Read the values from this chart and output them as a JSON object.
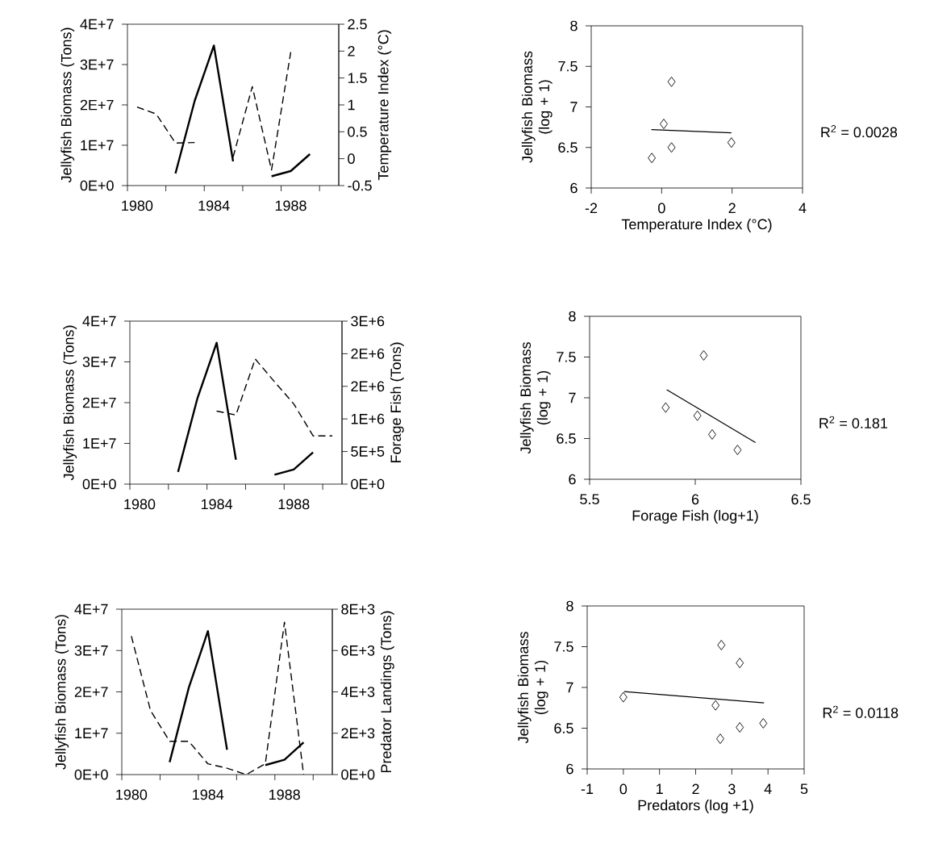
{
  "chart_data": [
    {
      "type": "line",
      "x": [
        1980,
        1981,
        1982,
        1983,
        1984,
        1985,
        1986,
        1987,
        1988,
        1989
      ],
      "xlim": [
        1979.5,
        1990.5
      ],
      "xticks": [
        {
          "value": 1979.5,
          "label": null
        },
        1980,
        {
          "value": 1981.5,
          "label": null
        },
        {
          "value": 1983.5,
          "label": null
        },
        1984,
        {
          "value": 1985.5,
          "label": null
        },
        {
          "value": 1987.5,
          "label": null
        },
        1988,
        {
          "value": 1989.5,
          "label": null
        }
      ],
      "ylabel": "Jellyfish Biomass (Tons)",
      "y2label": "Temperature Index (°C)",
      "ylim": [
        0,
        40000000
      ],
      "yticks": [
        {
          "value": 0,
          "label": "0E+0"
        },
        {
          "value": 10000000,
          "label": "1E+7"
        },
        {
          "value": 20000000,
          "label": "2E+7"
        },
        {
          "value": 30000000,
          "label": "3E+7"
        },
        {
          "value": 40000000,
          "label": "4E+7"
        }
      ],
      "y2lim": [
        -0.5,
        2.5
      ],
      "y2ticks": [
        -0.5,
        0,
        0.5,
        1,
        1.5,
        2,
        2.5
      ],
      "series": [
        {
          "color": "#000000",
          "line_style": "solid",
          "values": [
            null,
            null,
            3000000,
            21000000,
            34700000,
            6000000,
            null,
            2300000,
            3600000,
            7800000
          ]
        },
        {
          "color": "#000000",
          "line_style": "dashed",
          "axis": "y2",
          "values": [
            0.96,
            0.83,
            0.29,
            0.3,
            null,
            0.03,
            1.34,
            -0.21,
            1.98,
            null
          ]
        }
      ]
    },
    {
      "type": "scatter",
      "xlabel": "Temperature Index (°C)",
      "ylabel": "Jellyfish Biomass (log + 1)",
      "xlim": [
        -2,
        4
      ],
      "xticks": [
        -2,
        0,
        2,
        4
      ],
      "ylim": [
        6,
        8
      ],
      "yticks": [
        6,
        6.5,
        7,
        7.5,
        8
      ],
      "series": [
        {
          "type": "scatter",
          "marker": "diamond",
          "color": "#000000",
          "x": [
            -0.28,
            0.28,
            0.06,
            0.28,
            1.98
          ],
          "values": [
            6.37,
            7.31,
            6.79,
            6.5,
            6.56
          ]
        },
        {
          "type": "line",
          "line_style": "solid",
          "color": "#000000",
          "x": [
            -0.29,
            1.98
          ],
          "values": [
            6.72,
            6.68
          ]
        }
      ],
      "annotations": [
        "R$^{2}$ = 0.0028"
      ]
    },
    {
      "type": "line",
      "x": [
        1982,
        1983,
        1984,
        1985,
        1986,
        1987,
        1988,
        1989,
        1990
      ],
      "xlim": [
        1979.5,
        1990.5
      ],
      "xticks": [
        {
          "value": 1979.5,
          "label": null
        },
        1980,
        {
          "value": 1981.5,
          "label": null
        },
        {
          "value": 1983.5,
          "label": null
        },
        1984,
        {
          "value": 1985.5,
          "label": null
        },
        {
          "value": 1987.5,
          "label": null
        },
        1988,
        {
          "value": 1989.5,
          "label": null
        }
      ],
      "ylabel": "Jellyfish Biomass (Tons)",
      "y2label": "Forage Fish (Tons)",
      "ylim": [
        0,
        40000000
      ],
      "yticks": [
        {
          "value": 0,
          "label": "0E+0"
        },
        {
          "value": 10000000,
          "label": "1E+7"
        },
        {
          "value": 20000000,
          "label": "2E+7"
        },
        {
          "value": 30000000,
          "label": "3E+7"
        },
        {
          "value": 40000000,
          "label": "4E+7"
        }
      ],
      "y2lim": [
        0,
        2500000
      ],
      "y2ticks": [
        {
          "value": 0,
          "label": "0E+0"
        },
        {
          "value": 500000,
          "label": "5E+5"
        },
        {
          "value": 1000000,
          "label": "1E+6"
        },
        {
          "value": 1500000,
          "label": "2E+6"
        },
        {
          "value": 2000000,
          "label": "2E+6"
        },
        {
          "value": 2500000,
          "label": "3E+6"
        }
      ],
      "series": [
        {
          "color": "#000000",
          "line_style": "solid",
          "values": [
            3000000,
            21000000,
            34700000,
            6000000,
            null,
            2300000,
            3600000,
            7800000,
            null
          ]
        },
        {
          "color": "#000000",
          "line_style": "dashed",
          "axis": "y2",
          "values": [
            null,
            null,
            1120000,
            1060000,
            1920000,
            1570000,
            1230000,
            740000,
            740000
          ]
        }
      ]
    },
    {
      "type": "scatter",
      "xlabel": "Forage Fish (log+1)",
      "ylabel": "Jellyfish Biomass (log + 1)",
      "xlim": [
        5.5,
        6.5
      ],
      "xticks": [
        5.5,
        6,
        6.5
      ],
      "ylim": [
        6,
        8
      ],
      "yticks": [
        6,
        6.5,
        7,
        7.5,
        8
      ],
      "series": [
        {
          "type": "scatter",
          "marker": "diamond",
          "color": "#000000",
          "x": [
            5.86,
            6.04,
            6.01,
            6.08,
            6.2
          ],
          "values": [
            6.88,
            7.52,
            6.78,
            6.55,
            6.36
          ]
        },
        {
          "type": "line",
          "line_style": "solid",
          "color": "#000000",
          "x": [
            5.865,
            6.285
          ],
          "values": [
            7.1,
            6.45
          ]
        }
      ],
      "annotations": [
        "R$^{2}$ = 0.181"
      ]
    },
    {
      "type": "line",
      "x": [
        1980,
        1981,
        1982,
        1983,
        1984,
        1985,
        1986,
        1987,
        1988,
        1989
      ],
      "xlim": [
        1979.5,
        1990.5
      ],
      "xticks": [
        {
          "value": 1979.5,
          "label": null
        },
        1980,
        {
          "value": 1981.5,
          "label": null
        },
        {
          "value": 1983.5,
          "label": null
        },
        1984,
        {
          "value": 1985.5,
          "label": null
        },
        {
          "value": 1987.5,
          "label": null
        },
        1988,
        {
          "value": 1989.5,
          "label": null
        }
      ],
      "ylabel": "Jellyfish Biomass (Tons)",
      "y2label": "Predator Landings (Tons)",
      "ylim": [
        0,
        40000000
      ],
      "yticks": [
        {
          "value": 0,
          "label": "0E+0"
        },
        {
          "value": 10000000,
          "label": "1E+7"
        },
        {
          "value": 20000000,
          "label": "2E+7"
        },
        {
          "value": 30000000,
          "label": "3E+7"
        },
        {
          "value": 40000000,
          "label": "4E+7"
        }
      ],
      "y2lim": [
        0,
        8000
      ],
      "y2ticks": [
        {
          "value": 0,
          "label": "0E+0"
        },
        {
          "value": 2000,
          "label": "2E+3"
        },
        {
          "value": 4000,
          "label": "4E+3"
        },
        {
          "value": 6000,
          "label": "6E+3"
        },
        {
          "value": 8000,
          "label": "8E+3"
        }
      ],
      "series": [
        {
          "color": "#000000",
          "line_style": "solid",
          "values": [
            null,
            null,
            3000000,
            21000000,
            34700000,
            6000000,
            null,
            2300000,
            3600000,
            7800000
          ]
        },
        {
          "color": "#000000",
          "line_style": "dashed",
          "axis": "y2",
          "values": [
            6700,
            3100,
            1610,
            1610,
            520,
            310,
            0,
            520,
            7370,
            0
          ]
        }
      ]
    },
    {
      "type": "scatter",
      "xlabel": "Predators (log +1)",
      "ylabel": "Jellyfish Biomass (log + 1)",
      "xlim": [
        -1,
        5
      ],
      "xticks": [
        -1,
        0,
        1,
        2,
        3,
        4,
        5
      ],
      "ylim": [
        6,
        8
      ],
      "yticks": [
        6,
        6.5,
        7,
        7.5,
        8
      ],
      "series": [
        {
          "type": "scatter",
          "marker": "diamond",
          "color": "#000000",
          "x": [
            0,
            2.71,
            3.22,
            2.55,
            2.68,
            3.22,
            3.87
          ],
          "values": [
            6.88,
            7.52,
            7.3,
            6.78,
            6.37,
            6.51,
            6.56
          ]
        },
        {
          "type": "line",
          "line_style": "solid",
          "color": "#000000",
          "x": [
            0.02,
            3.89
          ],
          "values": [
            6.95,
            6.81
          ]
        }
      ],
      "annotations": [
        "R$^{2}$ = 0.0118"
      ]
    }
  ]
}
